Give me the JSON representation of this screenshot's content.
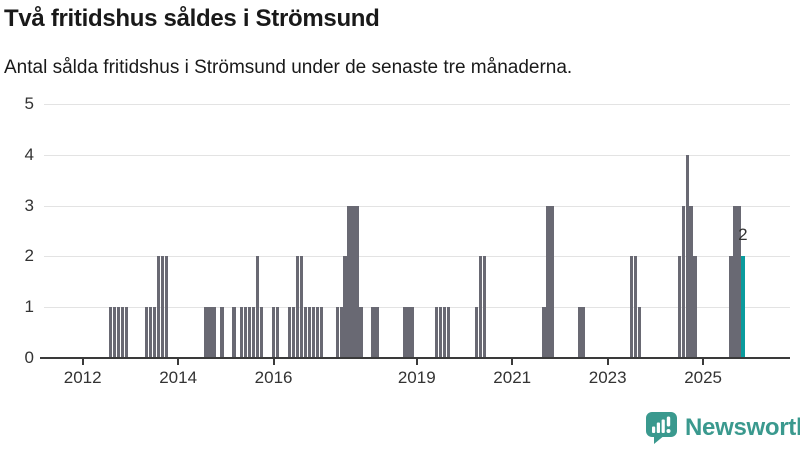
{
  "title": "Två fritidshus såldes i Strömsund",
  "subtitle": "Antal sålda fritidshus i Strömsund under de senaste tre månaderna.",
  "branding": {
    "name": "Newsworthy",
    "color": "#3a998e",
    "icon": "bar-chart-speech-bubble-icon"
  },
  "chart_data": {
    "type": "bar",
    "title": "Två fritidshus såldes i Strömsund",
    "subtitle": "Antal sålda fritidshus i Strömsund under de senaste tre månaderna.",
    "xlabel": "",
    "ylabel": "",
    "ylim": [
      0,
      5
    ],
    "yticks": [
      0,
      1,
      2,
      3,
      4,
      5
    ],
    "xtick_years": [
      2012,
      2014,
      2016,
      2019,
      2021,
      2023,
      2025
    ],
    "x_unit": "month",
    "grid": "horizontal",
    "colors": {
      "bar": "#696973",
      "highlight": "#0a9b9d",
      "grid": "#e3e3e3",
      "axis": "#3a3a3a",
      "text": "#333333"
    },
    "bars": [
      {
        "m": "2012-08",
        "v": 1
      },
      {
        "m": "2012-09",
        "v": 1
      },
      {
        "m": "2012-10",
        "v": 1
      },
      {
        "m": "2012-11",
        "v": 1
      },
      {
        "m": "2012-12",
        "v": 1
      },
      {
        "m": "2013-05",
        "v": 1
      },
      {
        "m": "2013-06",
        "v": 1
      },
      {
        "m": "2013-07",
        "v": 1
      },
      {
        "m": "2013-08",
        "v": 2
      },
      {
        "m": "2013-09",
        "v": 2
      },
      {
        "m": "2013-10",
        "v": 2
      },
      {
        "m": "2014-08",
        "v": 1
      },
      {
        "m": "2014-09",
        "v": 1
      },
      {
        "m": "2014-10",
        "v": 1
      },
      {
        "m": "2014-12",
        "v": 1
      },
      {
        "m": "2015-03",
        "v": 1
      },
      {
        "m": "2015-05",
        "v": 1
      },
      {
        "m": "2015-06",
        "v": 1
      },
      {
        "m": "2015-07",
        "v": 1
      },
      {
        "m": "2015-08",
        "v": 1
      },
      {
        "m": "2015-09",
        "v": 2
      },
      {
        "m": "2015-10",
        "v": 1
      },
      {
        "m": "2016-01",
        "v": 1
      },
      {
        "m": "2016-02",
        "v": 1
      },
      {
        "m": "2016-05",
        "v": 1
      },
      {
        "m": "2016-06",
        "v": 1
      },
      {
        "m": "2016-07",
        "v": 2
      },
      {
        "m": "2016-08",
        "v": 2
      },
      {
        "m": "2016-09",
        "v": 1
      },
      {
        "m": "2016-10",
        "v": 1
      },
      {
        "m": "2016-11",
        "v": 1
      },
      {
        "m": "2016-12",
        "v": 1
      },
      {
        "m": "2017-01",
        "v": 1
      },
      {
        "m": "2017-05",
        "v": 1
      },
      {
        "m": "2017-06",
        "v": 1
      },
      {
        "m": "2017-07",
        "v": 2
      },
      {
        "m": "2017-08",
        "v": 3
      },
      {
        "m": "2017-09",
        "v": 3
      },
      {
        "m": "2017-10",
        "v": 3
      },
      {
        "m": "2017-11",
        "v": 1
      },
      {
        "m": "2018-02",
        "v": 1
      },
      {
        "m": "2018-03",
        "v": 1
      },
      {
        "m": "2018-10",
        "v": 1
      },
      {
        "m": "2018-11",
        "v": 1
      },
      {
        "m": "2018-12",
        "v": 1
      },
      {
        "m": "2019-06",
        "v": 1
      },
      {
        "m": "2019-07",
        "v": 1
      },
      {
        "m": "2019-08",
        "v": 1
      },
      {
        "m": "2019-09",
        "v": 1
      },
      {
        "m": "2020-04",
        "v": 1
      },
      {
        "m": "2020-05",
        "v": 2
      },
      {
        "m": "2020-06",
        "v": 2
      },
      {
        "m": "2021-09",
        "v": 1
      },
      {
        "m": "2021-10",
        "v": 3
      },
      {
        "m": "2021-11",
        "v": 3
      },
      {
        "m": "2022-06",
        "v": 1
      },
      {
        "m": "2022-07",
        "v": 1
      },
      {
        "m": "2023-07",
        "v": 2
      },
      {
        "m": "2023-08",
        "v": 2
      },
      {
        "m": "2023-09",
        "v": 1
      },
      {
        "m": "2024-07",
        "v": 2
      },
      {
        "m": "2024-08",
        "v": 3
      },
      {
        "m": "2024-09",
        "v": 4
      },
      {
        "m": "2024-10",
        "v": 3
      },
      {
        "m": "2024-11",
        "v": 2
      },
      {
        "m": "2025-08",
        "v": 2
      },
      {
        "m": "2025-09",
        "v": 3
      },
      {
        "m": "2025-10",
        "v": 3
      },
      {
        "m": "2025-11",
        "v": 2
      }
    ],
    "highlight": {
      "m": "2025-11",
      "v": 2,
      "label": "2"
    }
  }
}
